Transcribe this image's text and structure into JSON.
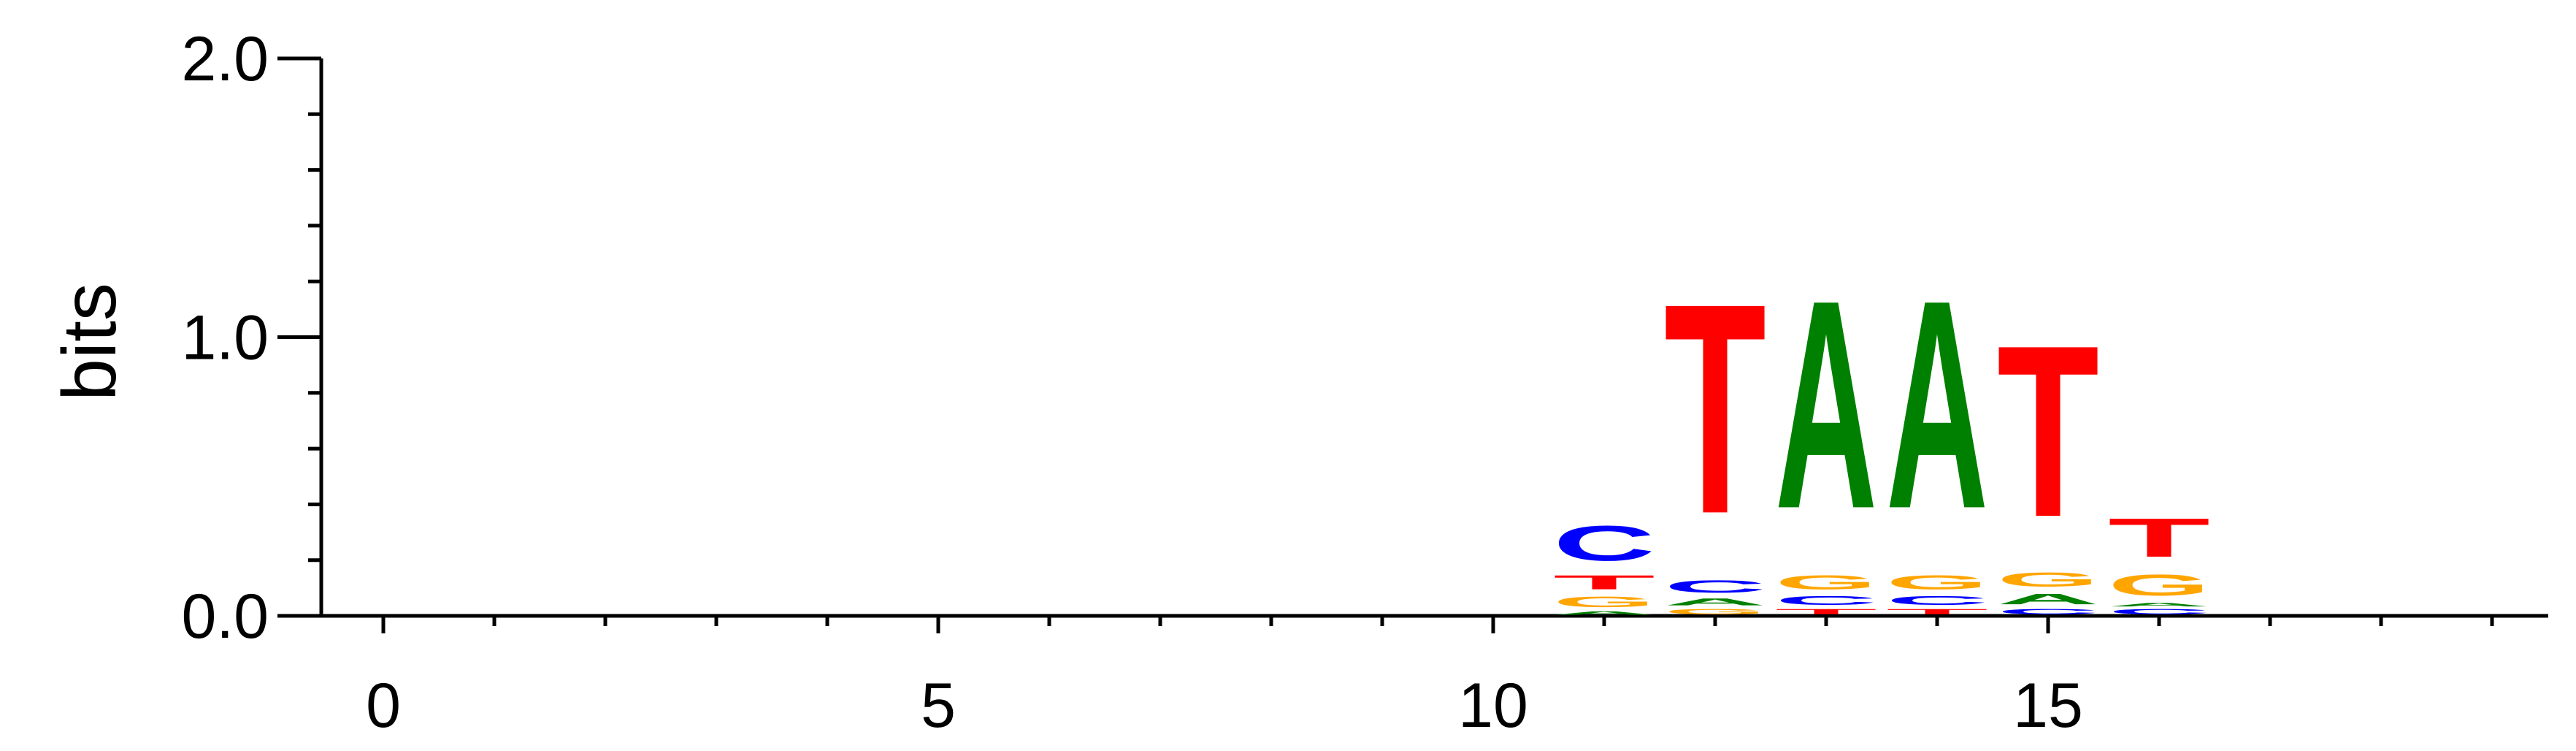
{
  "chart_data": {
    "type": "sequence-logo",
    "ylabel": "bits",
    "xlabel": "",
    "ylim": [
      0,
      2
    ],
    "xlim": [
      -0.5,
      19
    ],
    "y_ticks": [
      "0.0",
      "1.0",
      "2.0"
    ],
    "y_tick_values": [
      0,
      1,
      2
    ],
    "y_minor_step": 0.2,
    "x_ticks": [
      "0",
      "5",
      "10",
      "15"
    ],
    "x_tick_values": [
      0,
      5,
      10,
      15
    ],
    "x_minor_step": 1,
    "colors": {
      "A": "#008000",
      "C": "#0000ff",
      "G": "#ffa500",
      "T": "#ff0000"
    },
    "positions": [
      {
        "x": 11,
        "stack": [
          {
            "letter": "A",
            "bits": 0.02
          },
          {
            "letter": "G",
            "bits": 0.06
          },
          {
            "letter": "T",
            "bits": 0.08
          },
          {
            "letter": "C",
            "bits": 0.2
          }
        ]
      },
      {
        "x": 12,
        "stack": [
          {
            "letter": "G",
            "bits": 0.03
          },
          {
            "letter": "A",
            "bits": 0.04
          },
          {
            "letter": "C",
            "bits": 0.07
          },
          {
            "letter": "T",
            "bits": 1.2
          }
        ]
      },
      {
        "x": 13,
        "stack": [
          {
            "letter": "T",
            "bits": 0.03
          },
          {
            "letter": "C",
            "bits": 0.05
          },
          {
            "letter": "G",
            "bits": 0.08
          },
          {
            "letter": "A",
            "bits": 1.19
          }
        ]
      },
      {
        "x": 14,
        "stack": [
          {
            "letter": "T",
            "bits": 0.03
          },
          {
            "letter": "C",
            "bits": 0.05
          },
          {
            "letter": "G",
            "bits": 0.08
          },
          {
            "letter": "A",
            "bits": 1.19
          }
        ]
      },
      {
        "x": 15,
        "stack": [
          {
            "letter": "C",
            "bits": 0.03
          },
          {
            "letter": "A",
            "bits": 0.06
          },
          {
            "letter": "G",
            "bits": 0.08
          },
          {
            "letter": "T",
            "bits": 0.98
          }
        ]
      },
      {
        "x": 16,
        "stack": [
          {
            "letter": "C",
            "bits": 0.03
          },
          {
            "letter": "A",
            "bits": 0.02
          },
          {
            "letter": "G",
            "bits": 0.12
          },
          {
            "letter": "T",
            "bits": 0.22
          }
        ]
      }
    ]
  }
}
